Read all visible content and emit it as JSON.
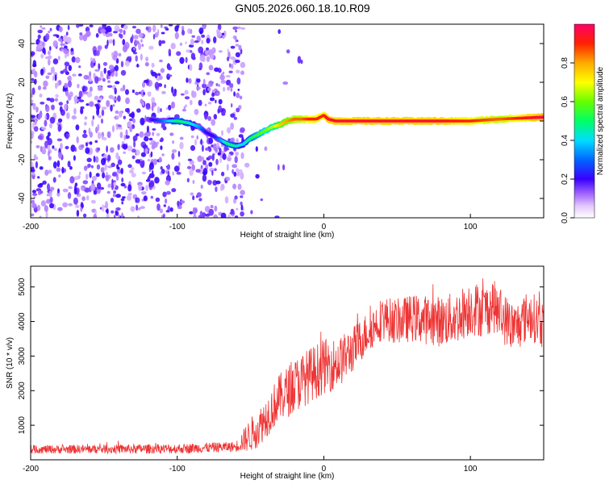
{
  "title": "GN05.2026.060.18.10.R09",
  "chart_data": [
    {
      "type": "heatmap",
      "xlabel": "Height of straight line (km)",
      "ylabel": "Frequency (Hz)",
      "xlim": [
        -200,
        150
      ],
      "ylim": [
        -50,
        50
      ],
      "x_ticks": [
        -200,
        -100,
        0,
        100
      ],
      "x_tick_labels": [
        "-200",
        "-100",
        "0",
        "100"
      ],
      "y_ticks": [
        -40,
        -20,
        0,
        20,
        40
      ],
      "y_tick_labels": [
        "-40",
        "-20",
        "0",
        "20",
        "40"
      ],
      "colorbar": {
        "label": "Normalized spectral amplitude",
        "range": [
          0,
          1
        ],
        "ticks": [
          0,
          0.2,
          0.4,
          0.6,
          0.8
        ],
        "tick_labels": [
          "0.0",
          "0.2",
          "0.4",
          "0.6",
          "0.8"
        ]
      },
      "noise_region_x": [
        -200,
        -55
      ],
      "ridge": {
        "x": [
          -120,
          -110,
          -100,
          -92,
          -85,
          -80,
          -75,
          -70,
          -65,
          -60,
          -55,
          -50,
          -45,
          -40,
          -35,
          -30,
          -25,
          -20,
          -15,
          -10,
          -5,
          0,
          3,
          8,
          20,
          50,
          80,
          100,
          120,
          150
        ],
        "freq": [
          1,
          0,
          0,
          -1,
          -3,
          -6,
          -8,
          -10,
          -12,
          -13,
          -12,
          -9,
          -7,
          -5,
          -3,
          -2,
          0,
          1,
          1,
          1,
          1,
          3,
          1,
          0,
          0,
          0,
          0,
          0,
          1,
          2
        ],
        "amplitude": [
          0.15,
          0.3,
          0.5,
          0.45,
          0.35,
          0.2,
          0.2,
          0.35,
          0.5,
          0.45,
          0.4,
          0.5,
          0.55,
          0.6,
          0.65,
          0.75,
          0.8,
          0.85,
          0.85,
          0.9,
          0.9,
          0.9,
          0.95,
          0.95,
          0.95,
          0.95,
          0.95,
          0.9,
          0.85,
          0.98
        ]
      }
    },
    {
      "type": "line",
      "xlabel": "Height of straight line (km)",
      "ylabel": "SNR (10 * v/v)",
      "xlim": [
        -200,
        150
      ],
      "ylim": [
        0,
        5600
      ],
      "x_ticks": [
        -200,
        -100,
        0,
        100
      ],
      "x_tick_labels": [
        "-200",
        "-100",
        "0",
        "100"
      ],
      "y_ticks": [
        1000,
        2000,
        3000,
        4000,
        5000
      ],
      "y_tick_labels": [
        "1000",
        "2000",
        "3000",
        "4000",
        "5000"
      ],
      "color": "#ee3333",
      "trend": {
        "x": [
          -200,
          -100,
          -60,
          -45,
          -30,
          -15,
          0,
          10,
          20,
          30,
          40,
          50,
          60,
          80,
          90,
          100,
          110,
          115,
          120,
          130,
          140,
          150
        ],
        "y": [
          300,
          320,
          380,
          900,
          1800,
          2300,
          2700,
          2800,
          3200,
          3700,
          4100,
          4000,
          4100,
          4000,
          4100,
          4400,
          4300,
          4500,
          4200,
          3800,
          4200,
          3900
        ]
      },
      "noise_amplitude": {
        "x": [
          -200,
          -60,
          -50,
          -20,
          0,
          30,
          100,
          150
        ],
        "y": [
          120,
          150,
          500,
          800,
          800,
          600,
          800,
          700
        ]
      }
    }
  ]
}
